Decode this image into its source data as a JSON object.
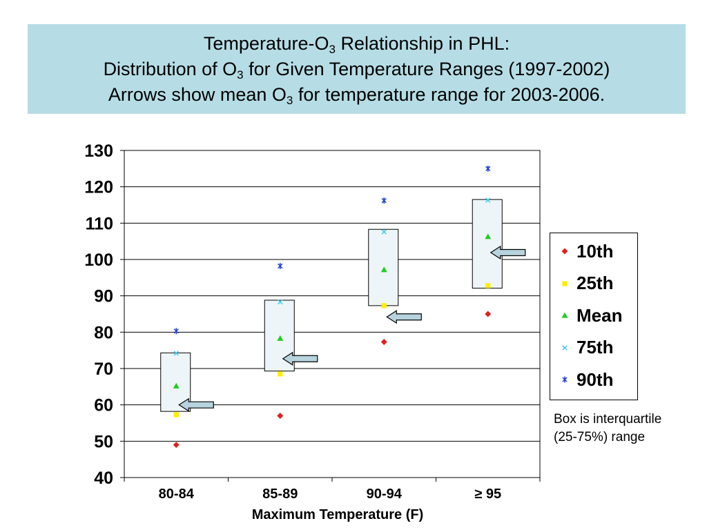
{
  "title": {
    "line1_pre": "Temperature-O",
    "line1_sub": "3",
    "line1_post": " Relationship in PHL:",
    "line2_pre": "Distribution of O",
    "line2_sub": "3",
    "line2_post": " for Given Temperature Ranges (1997-2002)",
    "line3_pre": "Arrows show mean O",
    "line3_sub": "3",
    "line3_post": " for temperature range for 2003-2006."
  },
  "note": {
    "line1": "Box is interquartile",
    "line2": "(25-75%) range"
  },
  "colors": {
    "title_bg": "#b6dde6",
    "p10": "#e02020",
    "p25": "#ffee00",
    "mean": "#22cc22",
    "p75": "#33ccee",
    "p90": "#1f3fcc",
    "box_fill": "#eef5f8",
    "arrow_fill": "#b7d3dd"
  },
  "chart_data": {
    "type": "scatter",
    "xlabel": "Maximum Temperature (F)",
    "ylabel": "",
    "ylim": [
      40,
      130
    ],
    "yticks": [
      40,
      50,
      60,
      70,
      80,
      90,
      100,
      110,
      120,
      130
    ],
    "grid": true,
    "legend_position": "right",
    "categories": [
      "80-84",
      "85-89",
      "90-94",
      "≥ 95"
    ],
    "series": [
      {
        "name": "10th",
        "marker": "diamond",
        "values": [
          49,
          57,
          77.3,
          85
        ]
      },
      {
        "name": "25th",
        "marker": "square",
        "values": [
          57.3,
          68.5,
          87.3,
          92.8
        ]
      },
      {
        "name": "Mean",
        "marker": "triangle",
        "values": [
          65.2,
          78.3,
          97.2,
          106.3
        ]
      },
      {
        "name": "75th",
        "marker": "x",
        "values": [
          74.2,
          88.3,
          107.6,
          116.3
        ]
      },
      {
        "name": "90th",
        "marker": "star",
        "values": [
          80.3,
          98.2,
          116.2,
          125
        ]
      }
    ],
    "boxes": [
      {
        "category": "80-84",
        "low": 58.2,
        "high": 74.3
      },
      {
        "category": "85-89",
        "low": 69.3,
        "high": 88.8
      },
      {
        "category": "90-94",
        "low": 87.3,
        "high": 108.3
      },
      {
        "category": "≥ 95",
        "low": 92.1,
        "high": 116.5
      }
    ],
    "arrows_2003_2006_mean": [
      {
        "category": "80-84",
        "value": 60.0
      },
      {
        "category": "85-89",
        "value": 72.7
      },
      {
        "category": "90-94",
        "value": 84.2
      },
      {
        "category": "≥ 95",
        "value": 101.9
      }
    ]
  }
}
